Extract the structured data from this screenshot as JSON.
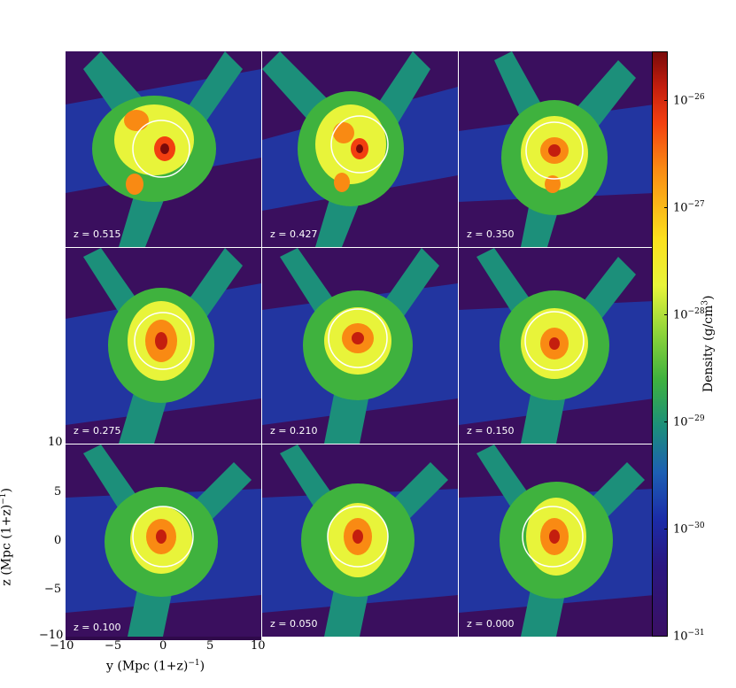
{
  "panels": [
    {
      "z_label": "z = 0.515"
    },
    {
      "z_label": "z = 0.427"
    },
    {
      "z_label": "z = 0.350"
    },
    {
      "z_label": "z = 0.275"
    },
    {
      "z_label": "z = 0.210"
    },
    {
      "z_label": "z = 0.150"
    },
    {
      "z_label": "z = 0.100"
    },
    {
      "z_label": "z = 0.050"
    },
    {
      "z_label": "z = 0.000"
    }
  ],
  "axes": {
    "x_label": "y  (Mpc (1+z)",
    "x_label_sup": "−1",
    "x_label_end": ")",
    "y_label": "z  (Mpc (1+z)",
    "y_label_sup": "−1",
    "y_label_end": ")",
    "x_ticks": [
      "−10",
      "−5",
      "0",
      "5",
      "10"
    ],
    "y_ticks": [
      "10",
      "5",
      "0",
      "−5",
      "−10"
    ]
  },
  "colorbar": {
    "label": "Density  (g/cm",
    "label_sup": "3",
    "label_end": ")",
    "tick_base": "10",
    "ticks": [
      "−26",
      "−27",
      "−28",
      "−29",
      "−30",
      "−31"
    ]
  }
}
